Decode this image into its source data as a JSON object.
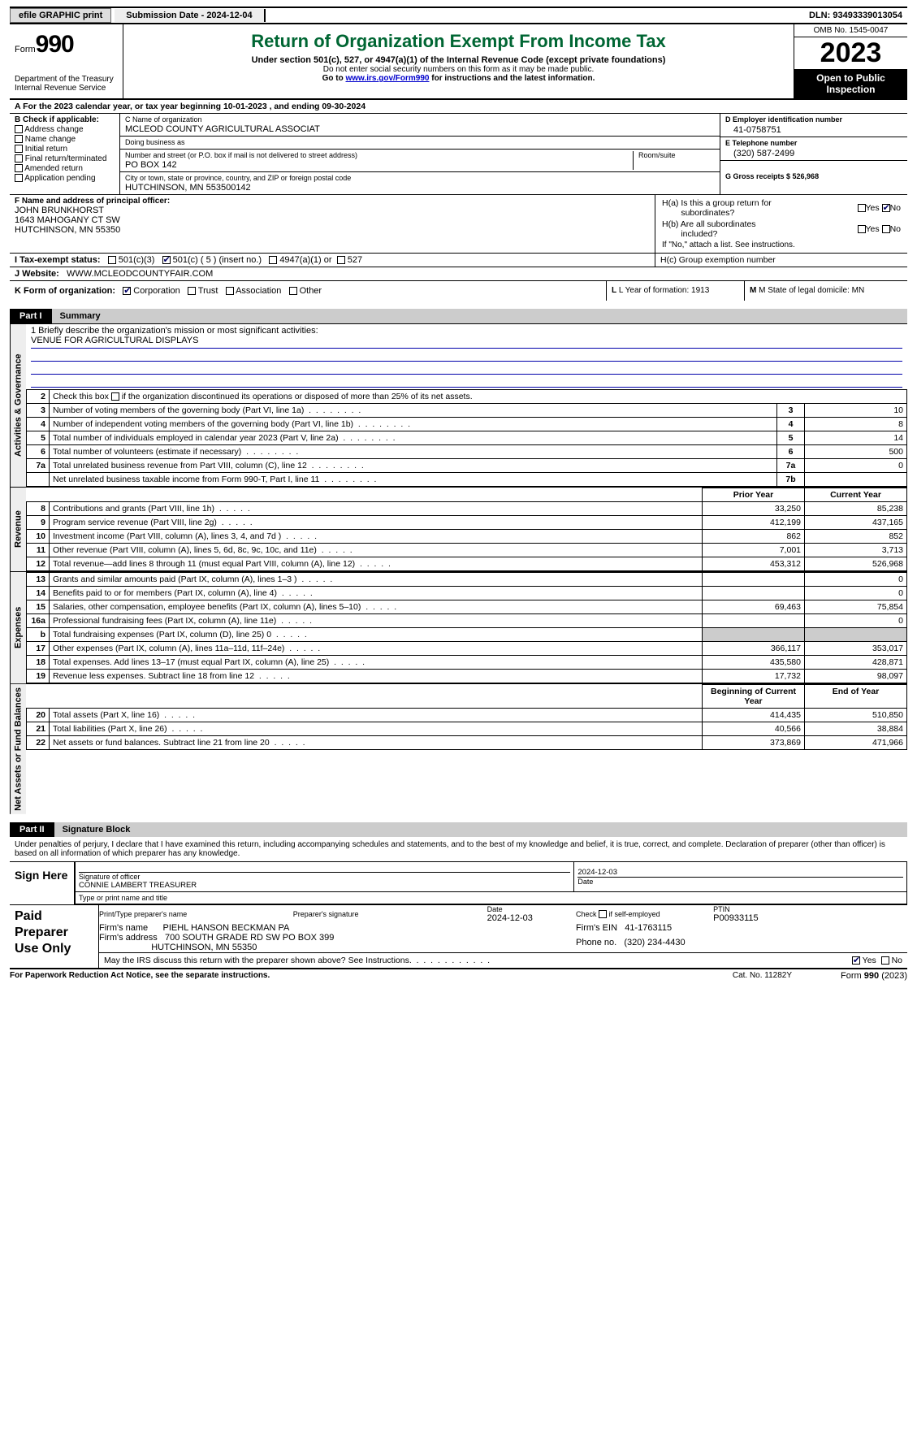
{
  "topbar": {
    "efile": "efile GRAPHIC print",
    "submission_label": "Submission Date - 2024-12-04",
    "dln_label": "DLN: 93493339013054"
  },
  "header": {
    "form": "Form",
    "form_num": "990",
    "dept": "Department of the Treasury Internal Revenue Service",
    "title": "Return of Organization Exempt From Income Tax",
    "sub": "Under section 501(c), 527, or 4947(a)(1) of the Internal Revenue Code (except private foundations)",
    "ssn": "Do not enter social security numbers on this form as it may be made public.",
    "goto_pre": "Go to ",
    "goto_link": "www.irs.gov/Form990",
    "goto_post": " for instructions and the latest information.",
    "omb": "OMB No. 1545-0047",
    "year": "2023",
    "open": "Open to Public Inspection"
  },
  "rowA": "A For the 2023 calendar year, or tax year beginning 10-01-2023     , and ending 09-30-2024",
  "colB": {
    "hdr": "B Check if applicable:",
    "items": [
      "Address change",
      "Name change",
      "Initial return",
      "Final return/terminated",
      "Amended return",
      "Application pending"
    ]
  },
  "colC": {
    "name_lbl": "C Name of organization",
    "name": "MCLEOD COUNTY AGRICULTURAL ASSOCIAT",
    "dba_lbl": "Doing business as",
    "dba": "",
    "street_lbl": "Number and street (or P.O. box if mail is not delivered to street address)",
    "street": "PO BOX 142",
    "room_lbl": "Room/suite",
    "room": "",
    "city_lbl": "City or town, state or province, country, and ZIP or foreign postal code",
    "city": "HUTCHINSON, MN  553500142"
  },
  "colD": {
    "d_lbl": "D Employer identification number",
    "d_val": "41-0758751",
    "e_lbl": "E Telephone number",
    "e_val": "(320) 587-2499",
    "g_lbl": "G Gross receipts $ 526,968"
  },
  "rowF": {
    "lbl": "F Name and address of principal officer:",
    "name": "JOHN BRUNKHORST",
    "addr1": "1643 MAHOGANY CT SW",
    "addr2": "HUTCHINSON, MN  55350"
  },
  "rowH": {
    "a1": "H(a)  Is this a group return for",
    "a2": "subordinates?",
    "b1": "H(b)  Are all subordinates",
    "b2": "included?",
    "note": "If \"No,\" attach a list. See instructions.",
    "c": "H(c)  Group exemption number",
    "yes": "Yes",
    "no": "No"
  },
  "rowI": {
    "lbl": "I  Tax-exempt status:",
    "o1": "501(c)(3)",
    "o2": "501(c) ( 5 ) (insert no.)",
    "o3": "4947(a)(1) or",
    "o4": "527"
  },
  "rowJ": {
    "lbl": "J  Website:",
    "val": "WWW.MCLEODCOUNTYFAIR.COM"
  },
  "rowK": {
    "lbl": "K Form of organization:",
    "o1": "Corporation",
    "o2": "Trust",
    "o3": "Association",
    "o4": "Other",
    "l": "L Year of formation: 1913",
    "m": "M State of legal domicile: MN"
  },
  "parts": {
    "p1": "Part I",
    "p1t": "Summary",
    "p2": "Part II",
    "p2t": "Signature Block"
  },
  "vlabels": {
    "gov": "Activities & Governance",
    "rev": "Revenue",
    "exp": "Expenses",
    "net": "Net Assets or Fund Balances"
  },
  "mission": {
    "lbl": "1  Briefly describe the organization's mission or most significant activities:",
    "val": "VENUE FOR AGRICULTURAL DISPLAYS"
  },
  "gov_lines": [
    {
      "n": "2",
      "t": "Check this box        if the organization discontinued its operations or disposed of more than 25% of its net assets.",
      "box": "",
      "val": ""
    },
    {
      "n": "3",
      "t": "Number of voting members of the governing body (Part VI, line 1a)",
      "box": "3",
      "val": "10"
    },
    {
      "n": "4",
      "t": "Number of independent voting members of the governing body (Part VI, line 1b)",
      "box": "4",
      "val": "8"
    },
    {
      "n": "5",
      "t": "Total number of individuals employed in calendar year 2023 (Part V, line 2a)",
      "box": "5",
      "val": "14"
    },
    {
      "n": "6",
      "t": "Total number of volunteers (estimate if necessary)",
      "box": "6",
      "val": "500"
    },
    {
      "n": "7a",
      "t": "Total unrelated business revenue from Part VIII, column (C), line 12",
      "box": "7a",
      "val": "0"
    },
    {
      "n": "",
      "t": "Net unrelated business taxable income from Form 990-T, Part I, line 11",
      "box": "7b",
      "val": ""
    }
  ],
  "col_hdrs": {
    "prior": "Prior Year",
    "current": "Current Year",
    "begin": "Beginning of Current Year",
    "end": "End of Year"
  },
  "rev_lines": [
    {
      "n": "8",
      "t": "Contributions and grants (Part VIII, line 1h)",
      "p": "33,250",
      "c": "85,238"
    },
    {
      "n": "9",
      "t": "Program service revenue (Part VIII, line 2g)",
      "p": "412,199",
      "c": "437,165"
    },
    {
      "n": "10",
      "t": "Investment income (Part VIII, column (A), lines 3, 4, and 7d )",
      "p": "862",
      "c": "852"
    },
    {
      "n": "11",
      "t": "Other revenue (Part VIII, column (A), lines 5, 6d, 8c, 9c, 10c, and 11e)",
      "p": "7,001",
      "c": "3,713"
    },
    {
      "n": "12",
      "t": "Total revenue—add lines 8 through 11 (must equal Part VIII, column (A), line 12)",
      "p": "453,312",
      "c": "526,968"
    }
  ],
  "exp_lines": [
    {
      "n": "13",
      "t": "Grants and similar amounts paid (Part IX, column (A), lines 1–3 )",
      "p": "",
      "c": "0"
    },
    {
      "n": "14",
      "t": "Benefits paid to or for members (Part IX, column (A), line 4)",
      "p": "",
      "c": "0"
    },
    {
      "n": "15",
      "t": "Salaries, other compensation, employee benefits (Part IX, column (A), lines 5–10)",
      "p": "69,463",
      "c": "75,854"
    },
    {
      "n": "16a",
      "t": "Professional fundraising fees (Part IX, column (A), line 11e)",
      "p": "",
      "c": "0"
    },
    {
      "n": "b",
      "t": "Total fundraising expenses (Part IX, column (D), line 25) 0",
      "p": "SHADE",
      "c": "SHADE"
    },
    {
      "n": "17",
      "t": "Other expenses (Part IX, column (A), lines 11a–11d, 11f–24e)",
      "p": "366,117",
      "c": "353,017"
    },
    {
      "n": "18",
      "t": "Total expenses. Add lines 13–17 (must equal Part IX, column (A), line 25)",
      "p": "435,580",
      "c": "428,871"
    },
    {
      "n": "19",
      "t": "Revenue less expenses. Subtract line 18 from line 12",
      "p": "17,732",
      "c": "98,097"
    }
  ],
  "net_lines": [
    {
      "n": "20",
      "t": "Total assets (Part X, line 16)",
      "p": "414,435",
      "c": "510,850"
    },
    {
      "n": "21",
      "t": "Total liabilities (Part X, line 26)",
      "p": "40,566",
      "c": "38,884"
    },
    {
      "n": "22",
      "t": "Net assets or fund balances. Subtract line 21 from line 20",
      "p": "373,869",
      "c": "471,966"
    }
  ],
  "sig": {
    "penalties": "Under penalties of perjury, I declare that I have examined this return, including accompanying schedules and statements, and to the best of my knowledge and belief, it is true, correct, and complete. Declaration of preparer (other than officer) is based on all information of which preparer has any knowledge.",
    "sign_here": "Sign Here",
    "sig_officer": "Signature of officer",
    "officer": "CONNIE LAMBERT  TREASURER",
    "type_name": "Type or print name and title",
    "date_lbl": "Date",
    "date_val": "2024-12-03",
    "paid": "Paid Preparer Use Only",
    "pp_name_lbl": "Print/Type preparer's name",
    "pp_name": "",
    "pp_sig_lbl": "Preparer's signature",
    "pp_date_lbl": "Date",
    "pp_date": "2024-12-03",
    "pp_self": "Check         if self-employed",
    "pp_ptin_lbl": "PTIN",
    "pp_ptin": "P00933115",
    "firm_name_lbl": "Firm's name",
    "firm_name": "PIEHL HANSON BECKMAN PA",
    "firm_ein_lbl": "Firm's EIN",
    "firm_ein": "41-1763115",
    "firm_addr_lbl": "Firm's address",
    "firm_addr1": "700 SOUTH GRADE RD SW PO BOX 399",
    "firm_addr2": "HUTCHINSON, MN  55350",
    "phone_lbl": "Phone no.",
    "phone": "(320) 234-4430",
    "discuss": "May the IRS discuss this return with the preparer shown above? See Instructions.",
    "yes": "Yes",
    "no": "No"
  },
  "footer": {
    "l": "For Paperwork Reduction Act Notice, see the separate instructions.",
    "m": "Cat. No. 11282Y",
    "r1": "Form ",
    "r2": "990",
    "r3": " (2023)"
  }
}
